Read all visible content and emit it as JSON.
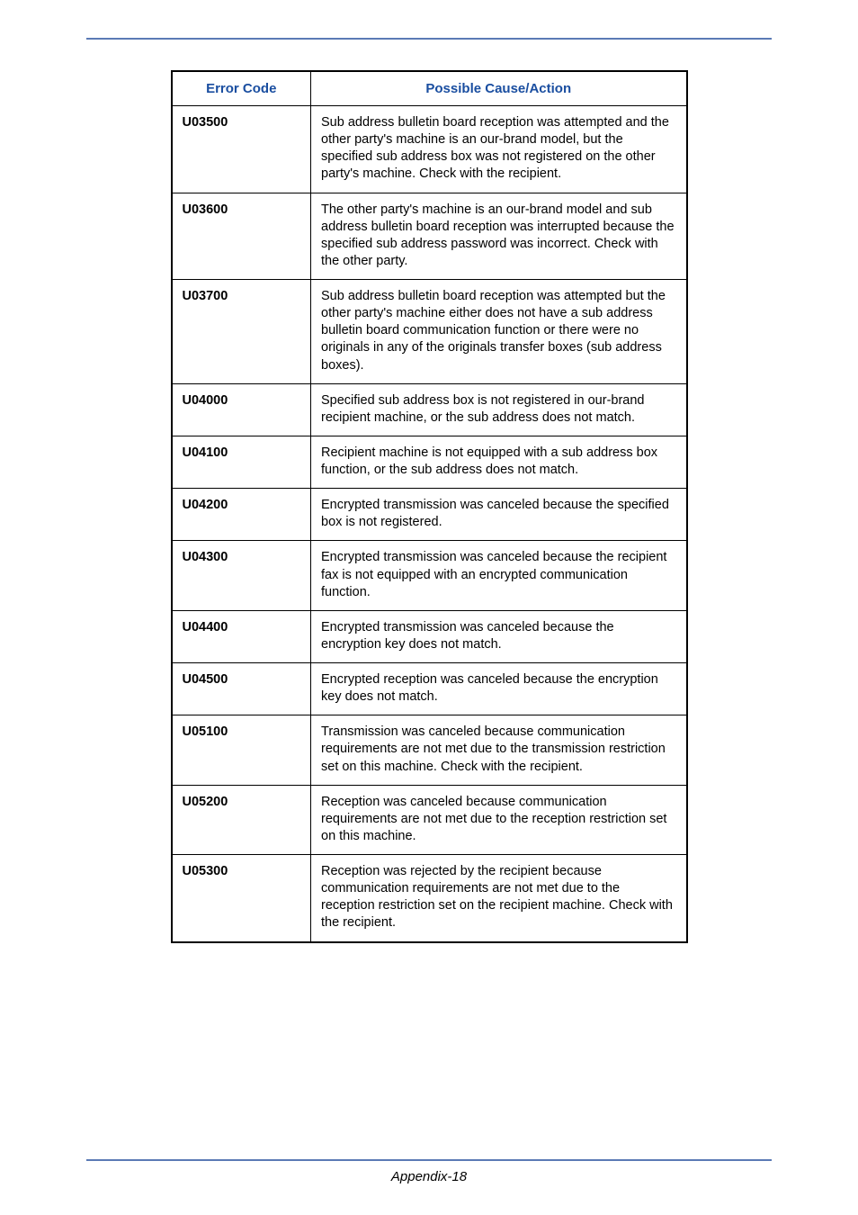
{
  "table": {
    "headers": {
      "code": "Error Code",
      "action": "Possible Cause/Action"
    },
    "header_color": "#1a4ea0",
    "rows": [
      {
        "code": "U03500",
        "action": "Sub address bulletin board reception was attempted and the other party's machine is an our-brand model, but the specified sub address box was not registered on the other party's machine. Check with the recipient."
      },
      {
        "code": "U03600",
        "action": "The other party's machine is an our-brand model and sub address bulletin board reception was interrupted because the specified sub address password was incorrect. Check with the other party."
      },
      {
        "code": "U03700",
        "action": "Sub address bulletin board reception was attempted but the other party's machine either does not have a sub address bulletin board communication function or there were no originals in any of the originals transfer boxes (sub address boxes)."
      },
      {
        "code": "U04000",
        "action": "Specified sub address box is not registered in our-brand recipient machine, or the sub address does not match."
      },
      {
        "code": "U04100",
        "action": "Recipient machine is not equipped with a sub address box function, or the sub address does not match."
      },
      {
        "code": "U04200",
        "action": "Encrypted transmission was canceled because the specified box is not registered."
      },
      {
        "code": "U04300",
        "action": "Encrypted transmission was canceled because the recipient fax is not equipped with an encrypted communication function."
      },
      {
        "code": "U04400",
        "action": "Encrypted transmission was canceled because the encryption key does not match."
      },
      {
        "code": "U04500",
        "action": "Encrypted reception was canceled because the encryption key does not match."
      },
      {
        "code": "U05100",
        "action": "Transmission was canceled because communication requirements are not met due to the transmission restriction set on this machine. Check with the recipient."
      },
      {
        "code": "U05200",
        "action": "Reception was canceled because communication requirements are not met due to the reception restriction set on this machine."
      },
      {
        "code": "U05300",
        "action": "Reception was rejected by the recipient because communication requirements are not met due to the reception restriction set on the recipient machine. Check with the recipient."
      }
    ]
  },
  "footer": "Appendix-18",
  "colors": {
    "rule": "#5b7ab5",
    "header_text": "#1a4ea0",
    "border": "#000000",
    "background": "#ffffff"
  }
}
